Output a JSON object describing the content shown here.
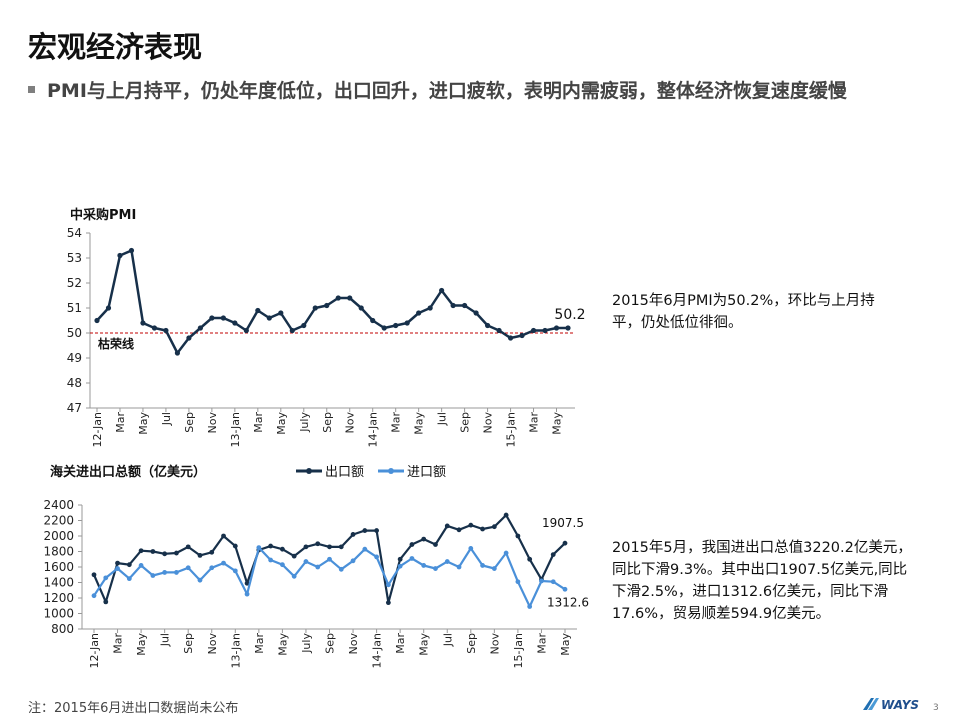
{
  "page": {
    "title": "宏观经济表现",
    "subtitle": "PMI与上月持平，仍处年度低位，出口回升，进口疲软，表明内需疲弱，整体经济恢复速度缓慢",
    "note": "注：2015年6月进出口数据尚未公布",
    "page_number": "3",
    "logo_text": "WAYS",
    "pmi_comment": "2015年6月PMI为50.2%，环比与上月持平，仍处低位徘徊。",
    "trade_comment": "2015年5月，我国进出口总值3220.2亿美元，同比下滑9.3%。其中出口1907.5亿美元,同比下滑2.5%，进口1312.6亿美元，同比下滑17.6%，贸易顺差594.9亿美元。"
  },
  "colors": {
    "pmi": "#17304a",
    "export": "#17304a",
    "import": "#4a90d9",
    "ref": "#c00000",
    "axis": "#999999"
  },
  "chart_data": [
    {
      "type": "line",
      "title": "中采购PMI",
      "ylim": [
        47,
        54
      ],
      "yticks": [
        47,
        48,
        49,
        50,
        51,
        52,
        53,
        54
      ],
      "x_tick_labels": [
        "12-Jan",
        "Mar",
        "May",
        "Jul",
        "Sep",
        "Nov",
        "13-Jan",
        "Mar",
        "May",
        "July",
        "Sep",
        "Nov",
        "14-Jan",
        "Mar",
        "May",
        "Jul",
        "Sep",
        "Nov",
        "15-Jan",
        "Mar",
        "May"
      ],
      "x_tick_every": 2,
      "reference_line": {
        "value": 50,
        "label": "枯荣线"
      },
      "last_value_label": "50.2",
      "series": [
        {
          "values": [
            50.5,
            51.0,
            53.1,
            53.3,
            50.4,
            50.2,
            50.1,
            49.2,
            49.8,
            50.2,
            50.6,
            50.6,
            50.4,
            50.1,
            50.9,
            50.6,
            50.8,
            50.1,
            50.3,
            51.0,
            51.1,
            51.4,
            51.4,
            51.0,
            50.5,
            50.2,
            50.3,
            50.4,
            50.8,
            51.0,
            51.7,
            51.1,
            51.1,
            50.8,
            50.3,
            50.1,
            49.8,
            49.9,
            50.1,
            50.1,
            50.2,
            50.2
          ]
        }
      ]
    },
    {
      "type": "line",
      "title": "海关进出口总额（亿美元）",
      "ylim": [
        800,
        2400
      ],
      "yticks": [
        800,
        1000,
        1200,
        1400,
        1600,
        1800,
        2000,
        2200,
        2400
      ],
      "x_tick_labels": [
        "12-Jan",
        "Mar",
        "May",
        "Jul",
        "Sep",
        "Nov",
        "13-Jan",
        "Mar",
        "May",
        "July",
        "Sep",
        "Nov",
        "14-Jan",
        "Mar",
        "May",
        "Jul",
        "Sep",
        "Nov",
        "15-Jan",
        "Mar",
        "May"
      ],
      "x_tick_every": 2,
      "legend": "top",
      "series": [
        {
          "name": "出口额",
          "last_label": "1907.5",
          "values": [
            1500,
            1150,
            1650,
            1630,
            1810,
            1800,
            1770,
            1780,
            1860,
            1750,
            1790,
            2000,
            1870,
            1390,
            1820,
            1870,
            1830,
            1740,
            1860,
            1900,
            1860,
            1860,
            2020,
            2070,
            2070,
            1140,
            1700,
            1890,
            1960,
            1890,
            2130,
            2080,
            2140,
            2090,
            2120,
            2270,
            2000,
            1700,
            1440,
            1760,
            1907.5
          ]
        },
        {
          "name": "进口额",
          "last_label": "1312.6",
          "values": [
            1230,
            1460,
            1580,
            1450,
            1620,
            1490,
            1530,
            1530,
            1590,
            1430,
            1590,
            1650,
            1550,
            1250,
            1850,
            1690,
            1630,
            1480,
            1670,
            1600,
            1700,
            1570,
            1680,
            1830,
            1730,
            1370,
            1610,
            1710,
            1620,
            1580,
            1670,
            1600,
            1840,
            1620,
            1580,
            1780,
            1410,
            1090,
            1420,
            1410,
            1312.6
          ]
        }
      ]
    }
  ]
}
